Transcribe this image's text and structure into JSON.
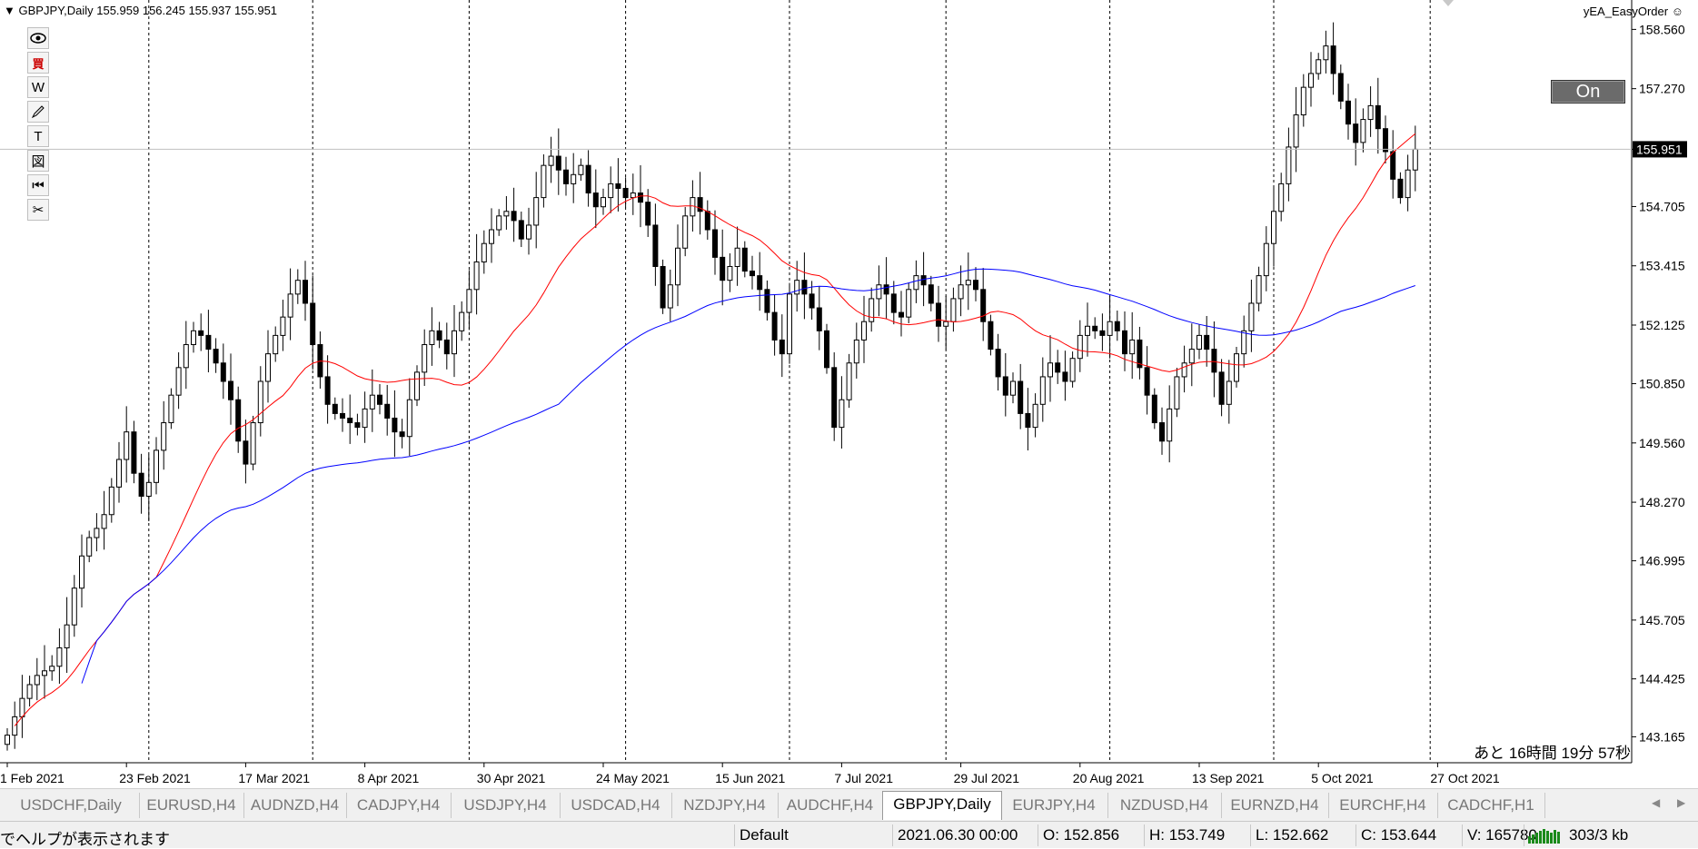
{
  "chart": {
    "header": "GBPJPY,Daily  155.959 156.245 155.937 155.951",
    "ea_label": "yEA_EasyOrder",
    "ea_icon": "smiley-icon",
    "on_button": "On",
    "countdown": "あと 16時間  19分 57秒",
    "current_price_label": "155.951",
    "colors": {
      "candle": "#000000",
      "ma_fast": "#ff0000",
      "ma_slow": "#0000ff",
      "current_price_label_bg": "#000000"
    },
    "toolbar": [
      {
        "icon": "eye-icon",
        "label": ""
      },
      {
        "icon": "buy-icon",
        "label": "買"
      },
      {
        "icon": "w-icon",
        "label": "W"
      },
      {
        "icon": "pencil-icon",
        "label": ""
      },
      {
        "icon": "text-icon",
        "label": "T"
      },
      {
        "icon": "picture-icon",
        "label": "図"
      },
      {
        "icon": "rewind-icon",
        "label": "⏮"
      },
      {
        "icon": "scissors-icon",
        "label": "✂"
      }
    ]
  },
  "chart_data": {
    "type": "candlestick",
    "ylim": [
      142.6,
      159.2
    ],
    "y_ticks": [
      "158.560",
      "157.270",
      "155.951",
      "154.705",
      "153.415",
      "152.125",
      "150.850",
      "149.560",
      "148.270",
      "146.995",
      "145.705",
      "144.425",
      "143.165"
    ],
    "y_tick_values": [
      158.56,
      157.27,
      155.951,
      154.705,
      153.415,
      152.125,
      150.85,
      149.56,
      148.27,
      146.995,
      145.705,
      144.425,
      143.165
    ],
    "x_ticks": [
      "1 Feb 2021",
      "23 Feb 2021",
      "17 Mar 2021",
      "8 Apr 2021",
      "30 Apr 2021",
      "24 May 2021",
      "15 Jun 2021",
      "7 Jul 2021",
      "29 Jul 2021",
      "20 Aug 2021",
      "13 Sep 2021",
      "5 Oct 2021",
      "27 Oct 2021"
    ],
    "x_tick_index": [
      0,
      16,
      32,
      48,
      64,
      80,
      96,
      112,
      128,
      144,
      160,
      176,
      192
    ],
    "period_separators_index": [
      19,
      41,
      62,
      83,
      105,
      126,
      148,
      170,
      191
    ],
    "close": [
      143.2,
      143.6,
      144.0,
      144.3,
      144.5,
      144.6,
      144.7,
      145.1,
      145.6,
      146.4,
      147.1,
      147.5,
      147.7,
      148.0,
      148.6,
      149.2,
      149.8,
      148.9,
      148.4,
      148.7,
      149.4,
      150.0,
      150.6,
      151.2,
      151.7,
      152.0,
      151.9,
      151.6,
      151.3,
      150.9,
      150.5,
      149.6,
      149.1,
      150.0,
      150.9,
      151.5,
      151.9,
      152.3,
      152.8,
      153.1,
      152.6,
      151.7,
      151.0,
      150.4,
      150.2,
      150.1,
      150.0,
      149.9,
      150.3,
      150.6,
      150.4,
      150.1,
      149.8,
      149.7,
      150.5,
      151.1,
      151.7,
      152.0,
      151.8,
      151.5,
      152.0,
      152.4,
      152.9,
      153.5,
      153.9,
      154.2,
      154.5,
      154.6,
      154.4,
      154.0,
      154.3,
      154.9,
      155.6,
      155.8,
      155.5,
      155.2,
      155.4,
      155.6,
      155.0,
      154.7,
      154.9,
      155.2,
      155.1,
      154.9,
      155.0,
      154.8,
      154.3,
      153.4,
      152.5,
      153.0,
      153.8,
      154.5,
      154.9,
      154.6,
      154.2,
      153.6,
      153.1,
      153.4,
      153.8,
      153.3,
      153.2,
      152.9,
      152.4,
      151.8,
      151.5,
      152.8,
      153.1,
      152.8,
      152.5,
      152.0,
      151.2,
      149.9,
      150.5,
      151.3,
      151.8,
      152.2,
      152.7,
      153.0,
      152.8,
      152.4,
      152.3,
      152.9,
      153.2,
      153.0,
      152.6,
      152.1,
      152.2,
      152.7,
      153.0,
      153.1,
      152.9,
      152.2,
      151.6,
      151.0,
      150.6,
      150.9,
      150.2,
      149.9,
      150.4,
      151.0,
      151.3,
      151.1,
      150.9,
      151.4,
      151.9,
      152.1,
      152.0,
      151.9,
      152.2,
      152.0,
      151.5,
      151.8,
      151.2,
      150.6,
      150.0,
      149.6,
      150.3,
      151.0,
      151.3,
      151.6,
      151.9,
      151.6,
      151.1,
      150.4,
      150.9,
      151.5,
      152.0,
      152.6,
      153.2,
      153.9,
      154.6,
      155.2,
      156.0,
      156.7,
      157.3,
      157.6,
      157.9,
      158.2,
      157.6,
      157.0,
      156.5,
      156.1,
      156.6,
      156.9,
      156.4,
      155.9,
      155.3,
      154.9,
      155.5,
      155.951
    ],
    "ma_fast_period": 21,
    "ma_slow_period": 75
  },
  "tabs": {
    "items": [
      "USDCHF,Daily",
      "EURUSD,H4",
      "AUDNZD,H4",
      "CADJPY,H4",
      "USDJPY,H4",
      "USDCAD,H4",
      "NZDJPY,H4",
      "AUDCHF,H4",
      "GBPJPY,Daily",
      "EURJPY,H4",
      "NZDUSD,H4",
      "EURNZD,H4",
      "EURCHF,H4",
      "CADCHF,H1"
    ],
    "active_index": 8
  },
  "status": {
    "help": "でヘルプが表示されます",
    "profile": "Default",
    "datetime": "2021.06.30 00:00",
    "open": "O: 152.856",
    "high": "H: 153.749",
    "low": "L: 152.662",
    "close": "C: 153.644",
    "volume": "V: 165780",
    "traffic": "303/3 kb"
  }
}
